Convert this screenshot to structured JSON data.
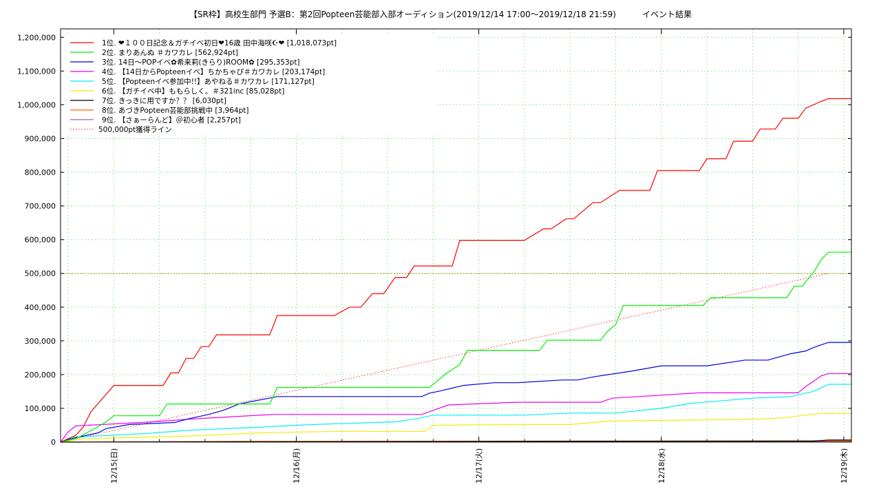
{
  "chart_data": {
    "type": "line",
    "title": "【SR枠】高校生部門 予選B：第2回Popteen芸能部入部オーディション(2019/12/14 17:00〜2019/12/18 21:59)          イベント結果",
    "xlabel": "",
    "ylabel": "",
    "ylim": [
      0,
      1225000
    ],
    "grid": true,
    "legend_position": "top-left",
    "yticks": [
      0,
      100000,
      200000,
      300000,
      400000,
      500000,
      600000,
      700000,
      800000,
      900000,
      1000000,
      1100000,
      1200000
    ],
    "ytick_labels": [
      "0",
      "100,000",
      "200,000",
      "300,000",
      "400,000",
      "500,000",
      "600,000",
      "700,000",
      "800,000",
      "900,000",
      "1,000,000",
      "1,100,000",
      "1,200,000"
    ],
    "xticks": [
      "2019-12-15 00:00",
      "2019-12-16 00:00",
      "2019-12-17 00:00",
      "2019-12-18 00:00",
      "2019-12-19 00:00"
    ],
    "xtick_labels": [
      "12/15(日)",
      "12/16(月)",
      "12/17(火)",
      "12/18(水)",
      "12/19(木)"
    ],
    "xlim": [
      "2019-12-14 17:00",
      "2019-12-19 01:00"
    ],
    "reference_line": {
      "name": "500,000pt獲得ライン",
      "color": "#ff0000",
      "style": "dotted",
      "x": [
        "2019-12-14 17:00",
        "2019-12-18 21:59"
      ],
      "y": [
        0,
        500000
      ]
    },
    "threshold_line": {
      "y": 500000,
      "color": "#999900"
    },
    "series": [
      {
        "name": "1位. ❤１００日記念＆ガチイベ初日❤16歳 田中海咲☪❤ [1,018,073pt]",
        "color": "#ff0000",
        "x": [
          "2019-12-14 17:00",
          "2019-12-14 19:00",
          "2019-12-14 20:00",
          "2019-12-14 21:00",
          "2019-12-15 00:00",
          "2019-12-15 06:30",
          "2019-12-15 07:30",
          "2019-12-15 08:30",
          "2019-12-15 09:30",
          "2019-12-15 10:30",
          "2019-12-15 11:30",
          "2019-12-15 12:30",
          "2019-12-15 13:30",
          "2019-12-15 20:30",
          "2019-12-15 21:30",
          "2019-12-16 05:00",
          "2019-12-16 07:00",
          "2019-12-16 08:30",
          "2019-12-16 10:00",
          "2019-12-16 11:30",
          "2019-12-16 13:00",
          "2019-12-16 14:30",
          "2019-12-16 15:30",
          "2019-12-16 20:30",
          "2019-12-16 21:30",
          "2019-12-17 06:00",
          "2019-12-17 08:30",
          "2019-12-17 09:30",
          "2019-12-17 11:30",
          "2019-12-17 12:30",
          "2019-12-17 15:00",
          "2019-12-17 16:00",
          "2019-12-17 18:30",
          "2019-12-17 22:30",
          "2019-12-17 23:30",
          "2019-12-18 05:00",
          "2019-12-18 06:00",
          "2019-12-18 08:30",
          "2019-12-18 09:30",
          "2019-12-18 12:00",
          "2019-12-18 13:00",
          "2019-12-18 15:00",
          "2019-12-18 16:00",
          "2019-12-18 18:00",
          "2019-12-18 19:00",
          "2019-12-18 21:00",
          "2019-12-18 21:59",
          "2019-12-19 01:00"
        ],
        "values": [
          0,
          20000,
          45000,
          90000,
          168000,
          168000,
          205000,
          205000,
          248000,
          248000,
          283000,
          283000,
          318000,
          318000,
          375000,
          375000,
          400000,
          400000,
          440000,
          440000,
          488000,
          488000,
          522000,
          522000,
          598000,
          598000,
          632000,
          632000,
          662000,
          662000,
          710000,
          710000,
          746000,
          746000,
          805000,
          805000,
          840000,
          840000,
          892000,
          892000,
          928000,
          928000,
          960000,
          960000,
          990000,
          1010000,
          1018073,
          1018073
        ]
      },
      {
        "name": "2位. まりあんぬ ＃カワカレ [562,924pt]",
        "color": "#00ee00",
        "x": [
          "2019-12-14 17:00",
          "2019-12-14 19:00",
          "2019-12-14 21:30",
          "2019-12-14 23:00",
          "2019-12-15 00:00",
          "2019-12-15 06:00",
          "2019-12-15 07:00",
          "2019-12-15 16:00",
          "2019-12-15 17:00",
          "2019-12-15 20:30",
          "2019-12-15 21:30",
          "2019-12-16 17:30",
          "2019-12-16 18:30",
          "2019-12-16 19:30",
          "2019-12-16 20:30",
          "2019-12-16 21:30",
          "2019-12-16 22:30",
          "2019-12-17 03:00",
          "2019-12-17 04:00",
          "2019-12-17 08:00",
          "2019-12-17 09:00",
          "2019-12-17 16:00",
          "2019-12-17 17:00",
          "2019-12-17 18:00",
          "2019-12-17 19:00",
          "2019-12-18 05:30",
          "2019-12-18 06:30",
          "2019-12-18 14:00",
          "2019-12-18 15:00",
          "2019-12-18 16:30",
          "2019-12-18 17:30",
          "2019-12-18 18:30",
          "2019-12-18 20:00",
          "2019-12-18 21:00",
          "2019-12-18 21:59",
          "2019-12-19 01:00"
        ],
        "values": [
          0,
          10000,
          40000,
          60000,
          78000,
          78000,
          113000,
          113000,
          113000,
          113000,
          162000,
          162000,
          180000,
          200000,
          215000,
          230000,
          272000,
          272000,
          272000,
          272000,
          302000,
          302000,
          330000,
          348000,
          405000,
          405000,
          428000,
          428000,
          428000,
          428000,
          462000,
          462000,
          502000,
          540000,
          562924,
          562924
        ]
      },
      {
        "name": "3位. 14日〜POPイベ✿希来莉(きらり)ROOM✿ [295,353pt]",
        "color": "#0000dd",
        "x": [
          "2019-12-14 17:00",
          "2019-12-14 18:00",
          "2019-12-14 20:00",
          "2019-12-14 22:00",
          "2019-12-14 23:00",
          "2019-12-15 02:00",
          "2019-12-15 08:00",
          "2019-12-15 10:00",
          "2019-12-15 12:30",
          "2019-12-15 14:30",
          "2019-12-15 16:30",
          "2019-12-15 21:30",
          "2019-12-16 16:30",
          "2019-12-16 17:30",
          "2019-12-16 19:00",
          "2019-12-16 20:30",
          "2019-12-16 22:00",
          "2019-12-17 02:00",
          "2019-12-17 05:00",
          "2019-12-17 11:00",
          "2019-12-17 13:00",
          "2019-12-17 15:00",
          "2019-12-17 17:00",
          "2019-12-17 20:00",
          "2019-12-18 00:00",
          "2019-12-18 06:00",
          "2019-12-18 11:00",
          "2019-12-18 14:00",
          "2019-12-18 17:00",
          "2019-12-18 19:00",
          "2019-12-18 20:00",
          "2019-12-18 21:00",
          "2019-12-18 21:59",
          "2019-12-19 01:00"
        ],
        "values": [
          0,
          8000,
          18000,
          28000,
          40000,
          52000,
          58000,
          70000,
          82000,
          95000,
          113000,
          135000,
          135000,
          145000,
          152000,
          160000,
          168000,
          176000,
          176000,
          184000,
          184000,
          193000,
          200000,
          210000,
          226000,
          226000,
          243000,
          243000,
          262000,
          270000,
          280000,
          288000,
          295353,
          295353
        ]
      },
      {
        "name": "4位. 【14日からPopteenイベ】ちかちゃぴ＃カワカレ [203,174pt]",
        "color": "#ee00ee",
        "x": [
          "2019-12-14 17:00",
          "2019-12-14 18:00",
          "2019-12-14 19:00",
          "2019-12-15 05:00",
          "2019-12-15 10:00",
          "2019-12-15 21:00",
          "2019-12-16 16:30",
          "2019-12-16 18:30",
          "2019-12-16 20:00",
          "2019-12-17 05:00",
          "2019-12-17 08:00",
          "2019-12-17 16:00",
          "2019-12-17 17:30",
          "2019-12-18 05:00",
          "2019-12-18 18:00",
          "2019-12-18 19:00",
          "2019-12-18 20:00",
          "2019-12-18 21:00",
          "2019-12-18 21:59",
          "2019-12-19 01:00"
        ],
        "values": [
          0,
          30000,
          48000,
          60000,
          68000,
          82000,
          82000,
          98000,
          110000,
          118000,
          118000,
          118000,
          130000,
          146000,
          146000,
          165000,
          180000,
          196000,
          203174,
          203174
        ]
      },
      {
        "name": "5位. 【Popteenイベ参加中!!】あやねる＃カワカレ [171,127pt]",
        "color": "#00eeee",
        "x": [
          "2019-12-14 17:00",
          "2019-12-14 19:00",
          "2019-12-15 04:00",
          "2019-12-15 10:00",
          "2019-12-15 20:00",
          "2019-12-16 02:00",
          "2019-12-16 13:00",
          "2019-12-16 16:00",
          "2019-12-16 18:00",
          "2019-12-17 06:00",
          "2019-12-17 12:00",
          "2019-12-17 18:00",
          "2019-12-18 00:00",
          "2019-12-18 04:00",
          "2019-12-18 12:00",
          "2019-12-18 17:00",
          "2019-12-18 20:00",
          "2019-12-18 21:59",
          "2019-12-19 01:00"
        ],
        "values": [
          0,
          15000,
          25000,
          35000,
          45000,
          52000,
          60000,
          70000,
          80000,
          80000,
          86000,
          86000,
          100000,
          115000,
          130000,
          135000,
          150000,
          171127,
          171127
        ]
      },
      {
        "name": "6位. 【ガチイベ中】ももらしく。＃321inc [85,028pt]",
        "color": "#eeee00",
        "x": [
          "2019-12-14 17:00",
          "2019-12-14 20:00",
          "2019-12-15 03:00",
          "2019-12-15 10:00",
          "2019-12-15 14:00",
          "2019-12-15 20:00",
          "2019-12-16 06:00",
          "2019-12-16 17:00",
          "2019-12-16 18:00",
          "2019-12-17 06:00",
          "2019-12-17 12:00",
          "2019-12-17 17:00",
          "2019-12-18 13:00",
          "2019-12-18 16:00",
          "2019-12-18 19:00",
          "2019-12-18 21:00",
          "2019-12-18 21:59",
          "2019-12-19 01:00"
        ],
        "values": [
          0,
          10000,
          14000,
          18000,
          22000,
          28000,
          32000,
          32000,
          50000,
          52000,
          52000,
          62000,
          68000,
          72000,
          80000,
          85028,
          85028,
          85028
        ]
      },
      {
        "name": "7位. きっきに用ですか？？ [6,030pt]",
        "color": "#000000",
        "x": [
          "2019-12-14 17:00",
          "2019-12-15 18:00",
          "2019-12-18 20:00",
          "2019-12-18 21:59",
          "2019-12-19 01:00"
        ],
        "values": [
          0,
          1000,
          3000,
          6030,
          6030
        ]
      },
      {
        "name": "8位. あづきPopteen芸能部挑戦中 [3,964pt]",
        "color": "#ff6600",
        "x": [
          "2019-12-14 17:00",
          "2019-12-15 17:00",
          "2019-12-18 21:59",
          "2019-12-19 01:00"
        ],
        "values": [
          0,
          2000,
          3964,
          3964
        ]
      },
      {
        "name": "9位. 【さぁーらんど】＠初心者 [2,257pt]",
        "color": "#996699",
        "x": [
          "2019-12-14 17:00",
          "2019-12-15 20:00",
          "2019-12-18 21:59",
          "2019-12-19 01:00"
        ],
        "values": [
          0,
          1000,
          2257,
          2257
        ]
      }
    ]
  }
}
